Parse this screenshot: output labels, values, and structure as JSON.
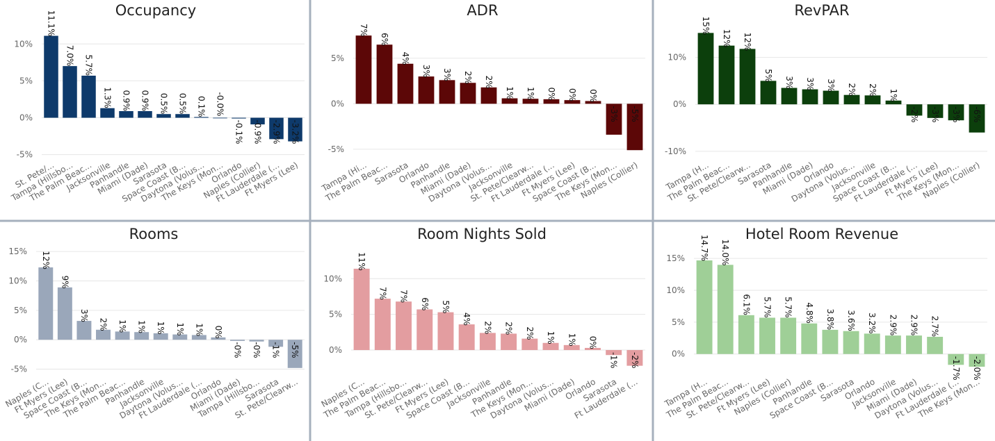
{
  "chart_data": [
    {
      "type": "bar",
      "title": "Occupancy",
      "color": "#0e3a6b",
      "yticks": [
        "10%",
        "5%",
        "0%",
        "-5%"
      ],
      "ytick_values": [
        10,
        5,
        0,
        -5
      ],
      "ylim": [
        -5.5,
        12
      ],
      "categories": [
        "St. Pete/...",
        "Tampa (Hillsbo...",
        "The Palm Beac...",
        "Jacksonville",
        "Panhandle",
        "Miami (Dade)",
        "Sarasota",
        "Space Coast (B...",
        "Daytona (Volus...",
        "The Keys (Mon...",
        "Orlando",
        "Naples (Collier)",
        "Ft Lauderdale (...",
        "Ft Myers (Lee)"
      ],
      "values": [
        11.1,
        7.0,
        5.7,
        1.3,
        0.9,
        0.9,
        0.5,
        0.5,
        0.1,
        0.0,
        -0.1,
        -0.9,
        -2.9,
        -3.2
      ],
      "labels": [
        "11.1%",
        "7.0%",
        "5.7%",
        "1.3%",
        "0.9%",
        "0.9%",
        "0.5%",
        "0.5%",
        "0.1%",
        "-0.0%",
        "-0.1%",
        "-0.9%",
        "-2.9%",
        "-3.2%"
      ]
    },
    {
      "type": "bar",
      "title": "ADR",
      "color": "#5c0707",
      "yticks": [
        "5%",
        "0%",
        "-5%"
      ],
      "ytick_values": [
        5,
        0,
        -5
      ],
      "ylim": [
        -6,
        8.2
      ],
      "categories": [
        "Tampa (Hi...",
        "The Palm Beac...",
        "Sarasota",
        "Orlando",
        "Panhandle",
        "Miami (Dade)",
        "Daytona (Volus...",
        "Jacksonville",
        "St. Pete/Clearw...",
        "Ft Lauderdale (...",
        "Ft Myers (Lee)",
        "Space Coast (B...",
        "The Keys (Mon...",
        "Naples (Collier)"
      ],
      "values": [
        7.5,
        6.5,
        4.4,
        3.0,
        2.6,
        2.3,
        1.8,
        0.6,
        0.55,
        0.5,
        0.4,
        0.3,
        -3.4,
        -5.1
      ],
      "labels": [
        "7%",
        "6%",
        "4%",
        "3%",
        "3%",
        "2%",
        "2%",
        "1%",
        "1%",
        "0%",
        "0%",
        "0%",
        "-3%",
        "-5%"
      ]
    },
    {
      "type": "bar",
      "title": "RevPAR",
      "color": "#0c3f0c",
      "yticks": [
        "10%",
        "0%",
        "-10%"
      ],
      "ytick_values": [
        10,
        0,
        -10
      ],
      "ylim": [
        -11.5,
        16
      ],
      "categories": [
        "Tampa (H...",
        "The Palm Beac...",
        "St. Pete/Clearw...",
        "Sarasota",
        "Panhandle",
        "Miami (Dade)",
        "Orlando",
        "Daytona (Volus...",
        "Jacksonville",
        "Space Coast (B...",
        "Ft Lauderdale (...",
        "Ft Myers (Lee)",
        "The Keys (Mon...",
        "Naples (Collier)"
      ],
      "values": [
        15.2,
        12.5,
        11.8,
        5.0,
        3.5,
        3.2,
        2.9,
        2.0,
        1.9,
        0.8,
        -2.4,
        -2.9,
        -3.4,
        -6.0
      ],
      "labels": [
        "15%",
        "12%",
        "12%",
        "5%",
        "3%",
        "3%",
        "3%",
        "2%",
        "2%",
        "1%",
        "-2%",
        "-3%",
        "-3%",
        "-6%"
      ]
    },
    {
      "type": "bar",
      "title": "Rooms",
      "color": "#9aa7ba",
      "yticks": [
        "15%",
        "10%",
        "5%",
        "0%",
        "-5%"
      ],
      "ytick_values": [
        15,
        10,
        5,
        0,
        -5
      ],
      "ylim": [
        -6,
        16.2
      ],
      "categories": [
        "Naples (C...",
        "Ft Myers (Lee)",
        "Space Coast (B...",
        "The Keys (Mon...",
        "The Palm Beac...",
        "Panhandle",
        "Jacksonville",
        "Daytona (Volus...",
        "Ft Lauderdale (...",
        "Orlando",
        "Miami (Dade)",
        "Tampa (Hillsbo...",
        "Sarasota",
        "St. Pete/Clearw..."
      ],
      "values": [
        12.3,
        8.9,
        3.2,
        1.7,
        1.4,
        1.3,
        1.1,
        0.9,
        0.8,
        0.4,
        -0.2,
        -0.3,
        -1.2,
        -4.8
      ],
      "labels": [
        "12%",
        "9%",
        "3%",
        "2%",
        "1%",
        "1%",
        "1%",
        "1%",
        "1%",
        "0%",
        "-0%",
        "-0%",
        "-1%",
        "-5%"
      ]
    },
    {
      "type": "bar",
      "title": "Room Nights Sold",
      "color": "#e39da0",
      "yticks": [
        "10%",
        "5%",
        "0%"
      ],
      "ytick_values": [
        10,
        5,
        0
      ],
      "ylim": [
        -3.5,
        14.8
      ],
      "categories": [
        "Naples (C...",
        "The Palm Beac...",
        "Tampa (Hillsbo...",
        "St. Pete/Clearw...",
        "Ft Myers (Lee)",
        "Space Coast (B...",
        "Jacksonville",
        "Panhandle",
        "The Keys (Mon...",
        "Daytona (Volus...",
        "Miami (Dade)",
        "Orlando",
        "Sarasota",
        "Ft Lauderdale (..."
      ],
      "values": [
        11.4,
        7.2,
        6.8,
        5.7,
        5.3,
        3.6,
        2.4,
        2.3,
        1.6,
        1.0,
        0.7,
        0.3,
        -0.7,
        -2.2
      ],
      "labels": [
        "11%",
        "7%",
        "7%",
        "6%",
        "5%",
        "4%",
        "2%",
        "2%",
        "2%",
        "1%",
        "1%",
        "0%",
        "-1%",
        "-2%"
      ]
    },
    {
      "type": "bar",
      "title": "Hotel Room Revenue",
      "color": "#9fcf97",
      "yticks": [
        "15%",
        "10%",
        "5%",
        "0%"
      ],
      "ytick_values": [
        15,
        10,
        5,
        0
      ],
      "ylim": [
        -3.3,
        17.2
      ],
      "categories": [
        "Tampa (H...",
        "The Palm Beac...",
        "St. Pete/Clearw...",
        "Ft Myers (Lee)",
        "Naples (Collier)",
        "Panhandle",
        "Space Coast (B...",
        "Sarasota",
        "Orlando",
        "Jacksonville",
        "Miami (Dade)",
        "Daytona (Volus...",
        "Ft Lauderdale (...",
        "The Keys (Mon..."
      ],
      "values": [
        14.7,
        14.0,
        6.1,
        5.7,
        5.7,
        4.8,
        3.8,
        3.6,
        3.2,
        2.9,
        2.9,
        2.7,
        -1.7,
        -2.0
      ],
      "labels": [
        "14.7%",
        "14.0%",
        "6.1%",
        "5.7%",
        "5.7%",
        "4.8%",
        "3.8%",
        "3.6%",
        "3.2%",
        "2.9%",
        "2.9%",
        "2.7%",
        "-1.7%",
        "-2.0%"
      ]
    }
  ]
}
